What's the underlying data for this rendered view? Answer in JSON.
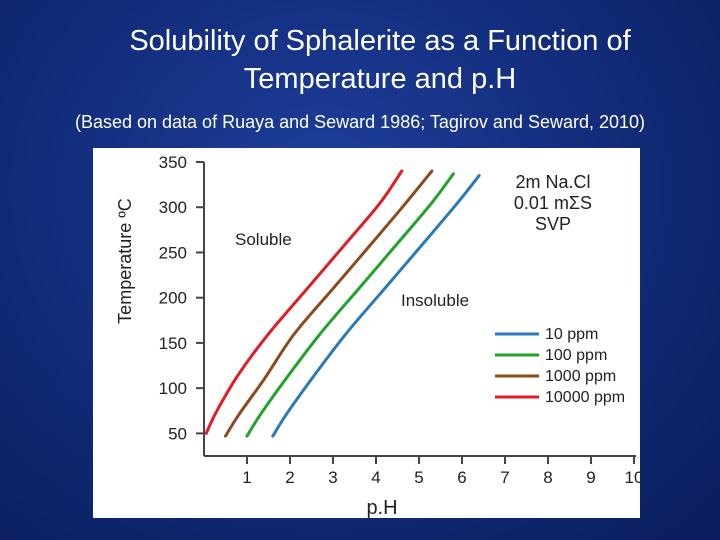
{
  "slide": {
    "title_line1": "Solubility of Sphalerite as a Function of",
    "title_line2": "Temperature and p.H",
    "subtitle": "(Based on data of Ruaya and Seward 1986; Tagirov and Seward, 2010)"
  },
  "chart_data": {
    "type": "line",
    "xlabel": "p.H",
    "ylabel": "Temperature ºC",
    "xlim": [
      0,
      10
    ],
    "ylim": [
      25,
      350
    ],
    "x_ticks": [
      1,
      2,
      3,
      4,
      5,
      6,
      7,
      8,
      9,
      10
    ],
    "y_ticks": [
      50,
      100,
      150,
      200,
      250,
      300,
      350
    ],
    "grid": false,
    "legend_position": "right",
    "conditions": [
      "2m Na.Cl",
      "0.01 mΣS",
      "SVP"
    ],
    "annotations": {
      "soluble": "Soluble",
      "insoluble": "Insoluble"
    },
    "series": [
      {
        "name": "10 ppm",
        "color": "#2a7ab8",
        "points": [
          [
            1.6,
            47
          ],
          [
            1.9,
            70
          ],
          [
            2.5,
            110
          ],
          [
            3.3,
            160
          ],
          [
            4.2,
            210
          ],
          [
            5.1,
            260
          ],
          [
            5.9,
            305
          ],
          [
            6.4,
            335
          ]
        ]
      },
      {
        "name": "100 ppm",
        "color": "#1fa32a",
        "points": [
          [
            1.0,
            47
          ],
          [
            1.3,
            70
          ],
          [
            1.9,
            110
          ],
          [
            2.7,
            160
          ],
          [
            3.6,
            210
          ],
          [
            4.5,
            260
          ],
          [
            5.3,
            305
          ],
          [
            5.8,
            337
          ]
        ]
      },
      {
        "name": "1000 ppm",
        "color": "#8c4a1e",
        "points": [
          [
            0.5,
            47
          ],
          [
            0.8,
            70
          ],
          [
            1.4,
            110
          ],
          [
            2.1,
            160
          ],
          [
            3.0,
            210
          ],
          [
            3.9,
            260
          ],
          [
            4.7,
            305
          ],
          [
            5.3,
            340
          ]
        ]
      },
      {
        "name": "10000 ppm",
        "color": "#e31b23",
        "points": [
          [
            0.05,
            50
          ],
          [
            0.3,
            75
          ],
          [
            0.8,
            115
          ],
          [
            1.5,
            160
          ],
          [
            2.4,
            210
          ],
          [
            3.3,
            260
          ],
          [
            4.1,
            305
          ],
          [
            4.6,
            340
          ]
        ]
      }
    ]
  }
}
